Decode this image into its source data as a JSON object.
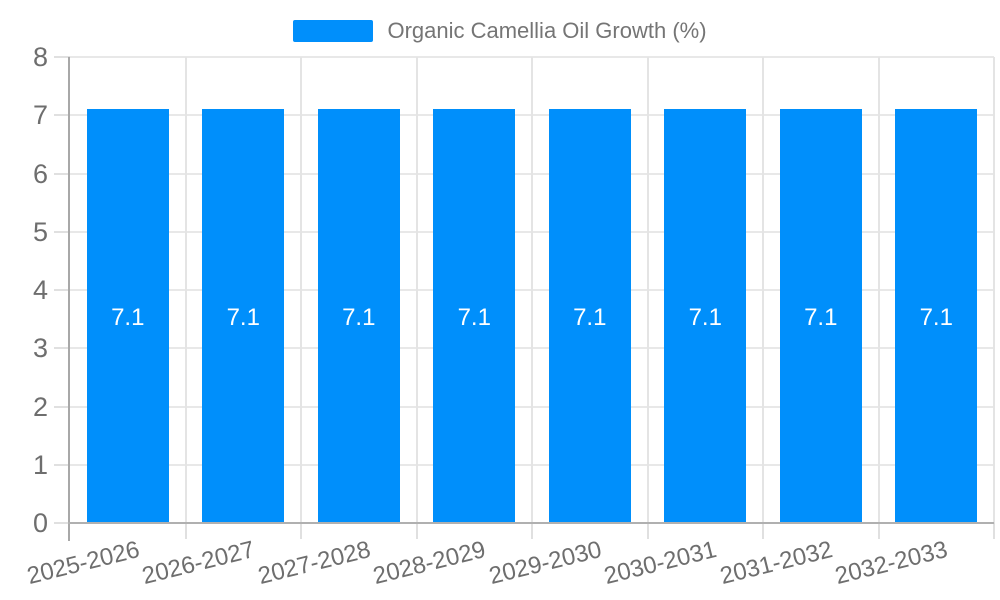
{
  "legend": {
    "label": "Organic Camellia Oil Growth (%)"
  },
  "colors": {
    "bar": "#008FFB",
    "h_gridline": "#e8e8e8",
    "v_gridline": "#e4e4e4",
    "y_axis": "#a8a8a8",
    "x_axis": "#b0b0b0",
    "tick": "#e0e0e0",
    "axis_label": "#6e6e6e",
    "legend_text": "#757575",
    "value_label": "#ffffff",
    "background": "#ffffff"
  },
  "chart_data": {
    "type": "bar",
    "title": "Organic Camellia Oil Growth (%)",
    "categories": [
      "2025-2026",
      "2026-2027",
      "2027-2028",
      "2028-2029",
      "2029-2030",
      "2030-2031",
      "2031-2032",
      "2032-2033"
    ],
    "values": [
      7.1,
      7.1,
      7.1,
      7.1,
      7.1,
      7.1,
      7.1,
      7.1
    ],
    "value_labels": [
      "7.1",
      "7.1",
      "7.1",
      "7.1",
      "7.1",
      "7.1",
      "7.1",
      "7.1"
    ],
    "xlabel": "",
    "ylabel": "",
    "ylim": [
      0,
      8
    ],
    "ytick_step": 1,
    "ytick_labels": [
      "0",
      "1",
      "2",
      "3",
      "4",
      "5",
      "6",
      "7",
      "8"
    ],
    "grid": true,
    "legend_position": "top",
    "data_label_position": "center"
  }
}
